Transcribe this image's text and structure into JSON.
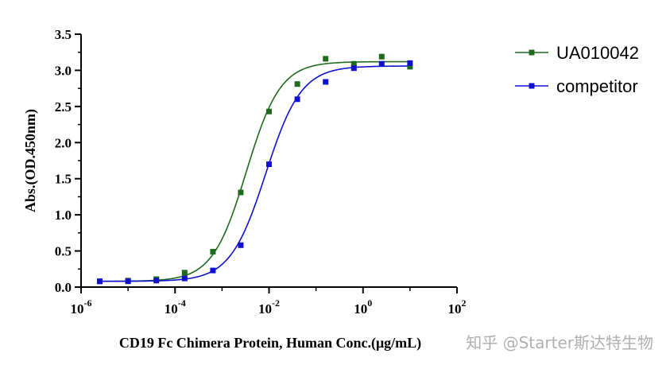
{
  "chart_data": {
    "type": "scatter",
    "title": "",
    "xlabel": "CD19 Fc Chimera Protein, Human Conc.(μg/mL)",
    "ylabel": "Abs.(OD.450nm)",
    "x_scale": "log",
    "xlim": [
      1e-06,
      100
    ],
    "ylim": [
      0,
      3.5
    ],
    "x_ticks": [
      {
        "value": 1e-06,
        "base": "10",
        "exp": "-6"
      },
      {
        "value": 0.0001,
        "base": "10",
        "exp": "-4"
      },
      {
        "value": 0.01,
        "base": "10",
        "exp": "-2"
      },
      {
        "value": 1,
        "base": "10",
        "exp": "0"
      },
      {
        "value": 100,
        "base": "10",
        "exp": "2"
      }
    ],
    "y_ticks": [
      "0.0",
      "0.5",
      "1.0",
      "1.5",
      "2.0",
      "2.5",
      "3.0",
      "3.5"
    ],
    "grid": false,
    "legend_position": "top-right",
    "series": [
      {
        "name": "UA010042",
        "color": "#1e6b1e",
        "marker": "square",
        "x": [
          2.5e-06,
          1e-05,
          4e-05,
          0.00016,
          0.00064,
          0.0025,
          0.01,
          0.04,
          0.16,
          0.64,
          2.5,
          10
        ],
        "y": [
          0.08,
          0.09,
          0.11,
          0.2,
          0.49,
          1.31,
          2.43,
          2.81,
          3.16,
          3.09,
          3.19,
          3.05
        ],
        "fit": {
          "bottom": 0.08,
          "top": 3.12,
          "ec50": 0.0033,
          "hill": 1.2
        }
      },
      {
        "name": "competitor",
        "color": "#1010d0",
        "marker": "square",
        "x": [
          2.5e-06,
          1e-05,
          4e-05,
          0.00016,
          0.00064,
          0.0025,
          0.01,
          0.04,
          0.16,
          0.64,
          2.5,
          10
        ],
        "y": [
          0.08,
          0.08,
          0.09,
          0.12,
          0.23,
          0.58,
          1.7,
          2.6,
          2.84,
          3.03,
          3.09,
          3.1
        ],
        "fit": {
          "bottom": 0.08,
          "top": 3.06,
          "ec50": 0.0085,
          "hill": 1.15
        }
      }
    ]
  },
  "watermark": "知乎 @Starter斯达特生物"
}
